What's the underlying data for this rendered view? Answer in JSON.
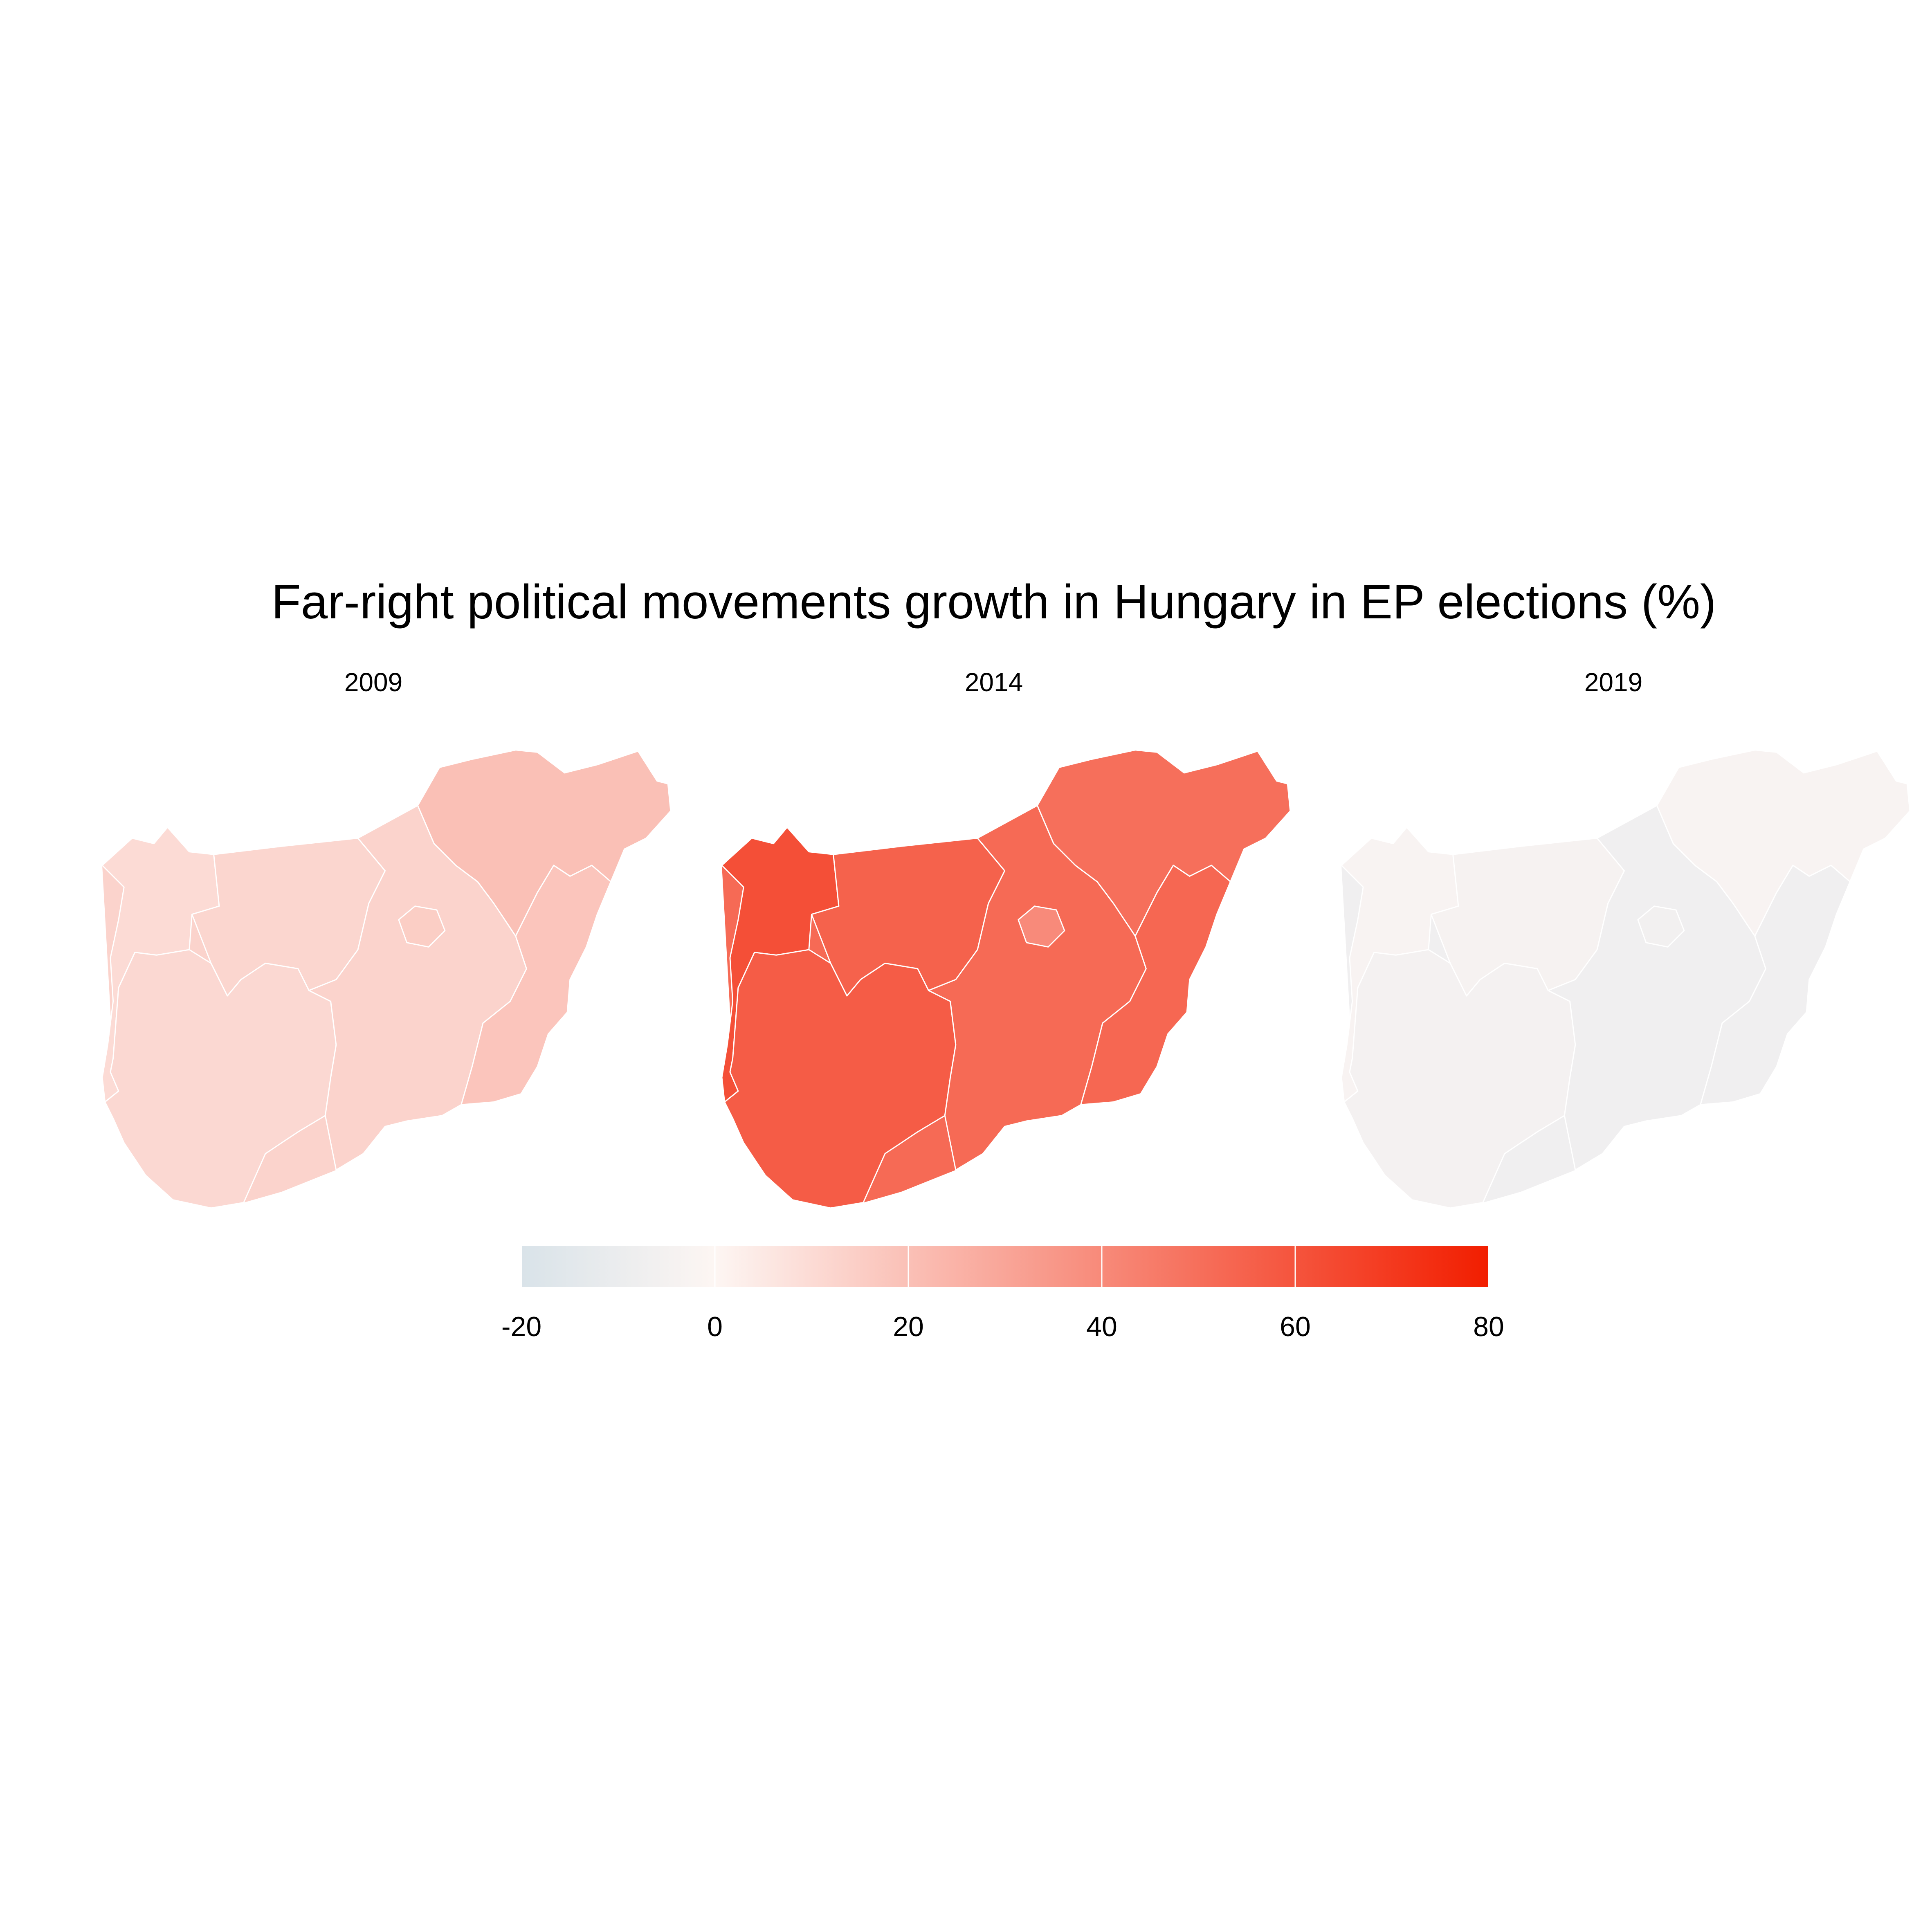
{
  "title": "Far-right political movements growth in Hungary in EP elections (%)",
  "colors": {
    "background": "#ffffff",
    "text": "#000000",
    "region_border": "#ffffff",
    "scale_low": "#d9e3e9",
    "scale_mid": "#fdf6f3",
    "scale_high": "#f21e00"
  },
  "legend": {
    "min": -20,
    "max": 80,
    "ticks": [
      "-20",
      "0",
      "20",
      "40",
      "60",
      "80"
    ],
    "tick_values": [
      -20,
      0,
      20,
      40,
      60,
      80
    ],
    "placement": "bottom"
  },
  "chart_data": [
    {
      "type": "map",
      "panel_label": "2009",
      "region_values": {
        "west": 10,
        "middle_west": 12,
        "central": 13,
        "budapest": 15,
        "south": 11,
        "north": 20,
        "east": 18
      }
    },
    {
      "type": "map",
      "panel_label": "2014",
      "region_values": {
        "west": 62,
        "middle_west": 55,
        "central": 52,
        "budapest": 40,
        "south": 57,
        "north": 50,
        "east": 53
      }
    },
    {
      "type": "map",
      "panel_label": "2019",
      "region_values": {
        "west": -3,
        "middle_west": -4,
        "central": -7,
        "budapest": -6,
        "south": -5,
        "north": -3,
        "east": -7
      }
    }
  ]
}
